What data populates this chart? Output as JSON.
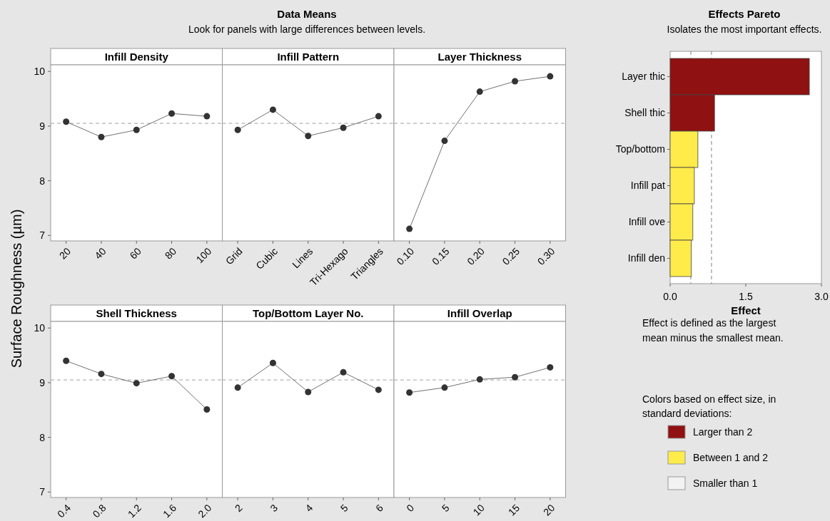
{
  "chart_data": [
    {
      "type": "other",
      "title": "Data Means",
      "subtitle": "Look for panels with large differences between levels."
    },
    {
      "type": "line",
      "title": "Infill Density",
      "ylabel": "Surface Roughness (µm)",
      "categories": [
        "20",
        "40",
        "60",
        "80",
        "100"
      ],
      "values": [
        9.08,
        8.8,
        8.93,
        9.23,
        9.18
      ],
      "color": "#333333",
      "marker": "circle",
      "ylim": [
        6.9,
        10.12
      ],
      "yticks": [
        7,
        8,
        9,
        10
      ],
      "ref_lines": [
        {
          "axis": "y",
          "value": 9.05,
          "color": "#a0a0a0",
          "line_style": "dashed"
        }
      ],
      "grid": false
    },
    {
      "type": "line",
      "title": "Infill Pattern",
      "categories": [
        "Grid",
        "Cubic",
        "Lines",
        "Tri-Hexago",
        "Triangles"
      ],
      "values": [
        8.93,
        9.3,
        8.82,
        8.97,
        9.18
      ],
      "color": "#333333",
      "marker": "circle",
      "ylim": [
        6.9,
        10.12
      ],
      "tick_labels": "x",
      "ref_lines": [
        {
          "axis": "y",
          "value": 9.05,
          "color": "#a0a0a0",
          "line_style": "dashed"
        }
      ],
      "grid": false
    },
    {
      "type": "line",
      "title": "Layer Thickness",
      "categories": [
        "0.10",
        "0.15",
        "0.20",
        "0.25",
        "0.30"
      ],
      "values": [
        7.12,
        8.73,
        9.63,
        9.82,
        9.91
      ],
      "color": "#333333",
      "marker": "circle",
      "ylim": [
        6.9,
        10.12
      ],
      "tick_labels": "x",
      "ref_lines": [
        {
          "axis": "y",
          "value": 9.05,
          "color": "#a0a0a0",
          "line_style": "dashed"
        }
      ],
      "grid": false
    },
    {
      "type": "line",
      "title": "Shell Thickness",
      "categories": [
        "0.4",
        "0.8",
        "1.2",
        "1.6",
        "2.0"
      ],
      "values": [
        9.4,
        9.16,
        8.99,
        9.12,
        8.51
      ],
      "color": "#333333",
      "marker": "circle",
      "ylim": [
        6.9,
        10.12
      ],
      "yticks": [
        7,
        8,
        9,
        10
      ],
      "ref_lines": [
        {
          "axis": "y",
          "value": 9.05,
          "color": "#a0a0a0",
          "line_style": "dashed"
        }
      ],
      "grid": false
    },
    {
      "type": "line",
      "title": "Top/Bottom Layer No.",
      "categories": [
        "2",
        "3",
        "4",
        "5",
        "6"
      ],
      "values": [
        8.91,
        9.36,
        8.83,
        9.19,
        8.87
      ],
      "color": "#333333",
      "marker": "circle",
      "ylim": [
        6.9,
        10.12
      ],
      "tick_labels": "x",
      "ref_lines": [
        {
          "axis": "y",
          "value": 9.05,
          "color": "#a0a0a0",
          "line_style": "dashed"
        }
      ],
      "grid": false
    },
    {
      "type": "line",
      "title": "Infill Overlap",
      "categories": [
        "0",
        "5",
        "10",
        "15",
        "20"
      ],
      "values": [
        8.82,
        8.91,
        9.06,
        9.1,
        9.28
      ],
      "color": "#333333",
      "marker": "circle",
      "ylim": [
        6.9,
        10.12
      ],
      "tick_labels": "x",
      "ref_lines": [
        {
          "axis": "y",
          "value": 9.05,
          "color": "#a0a0a0",
          "line_style": "dashed"
        }
      ],
      "grid": false
    },
    {
      "type": "bar",
      "orientation": "horizontal",
      "title": "Effects Pareto",
      "subtitle": "Isolates the most important effects.",
      "xlabel": "Effect",
      "categories": [
        "Layer thic",
        "Shell thic",
        "Top/bottom",
        "Infill pat",
        "Infill ove",
        "Infill den"
      ],
      "series": [
        {
          "name": "Larger than 2",
          "color": "#8f1111",
          "values": [
            2.76,
            0.88,
            null,
            null,
            null,
            null
          ]
        },
        {
          "name": "Between 1 and 2",
          "color": "#ffeb4a",
          "values": [
            null,
            null,
            0.55,
            0.48,
            0.45,
            0.42
          ]
        },
        {
          "name": "Smaller than 1",
          "color": "#f2f2f2",
          "values": [
            null,
            null,
            null,
            null,
            null,
            null
          ]
        }
      ],
      "xlim": [
        0,
        3
      ],
      "xticks": [
        {
          "value": 0,
          "label": "0.0"
        },
        1.5,
        {
          "value": 3,
          "label": "3.0"
        }
      ],
      "ref_lines": [
        {
          "axis": "x",
          "value": 0.41,
          "color": "#808080",
          "line_style": "dashed"
        },
        {
          "axis": "x",
          "value": 0.82,
          "color": "#808080",
          "line_style": "dashed"
        }
      ],
      "legend": "bottom",
      "legend_title": "Colors based on effect size, in standard deviations:",
      "annotations": [
        "Effect is defined as the largest mean minus the smallest mean."
      ],
      "grid": false
    }
  ]
}
